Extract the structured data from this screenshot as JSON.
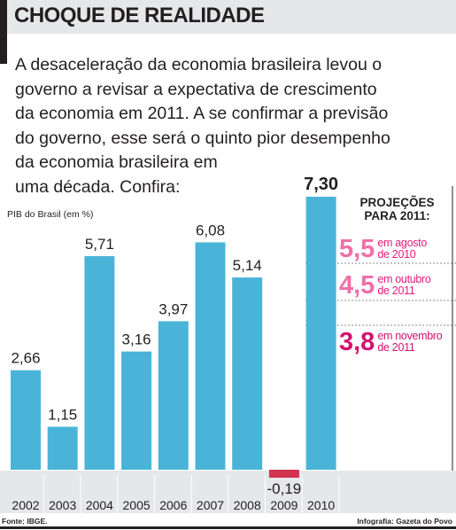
{
  "header": {
    "title": "CHOQUE DE REALIDADE"
  },
  "intro": {
    "lines": [
      "A desaceleração da economia brasileira levou o",
      "governo a revisar a expectativa de crescimento",
      "da economia em 2011. A se confirmar a previsão",
      "do governo, esse será o quinto pior desempenho",
      "da economia brasileira em",
      "uma década. Confira:"
    ]
  },
  "chart_data": {
    "type": "bar",
    "ylabel": "PIB do Brasil (em %)",
    "categories": [
      "2002",
      "2003",
      "2004",
      "2005",
      "2006",
      "2007",
      "2008",
      "2009",
      "2010"
    ],
    "values": [
      2.66,
      1.15,
      5.71,
      3.16,
      3.97,
      6.08,
      5.14,
      -0.19,
      7.3
    ],
    "value_labels": [
      "2,66",
      "1,15",
      "5,71",
      "3,16",
      "3,97",
      "6,08",
      "5,14",
      "-0,19",
      "7,30"
    ],
    "ylim": [
      -0.2,
      7.5
    ],
    "colors": {
      "positive": "#4ab4d8",
      "negative": "#d2334f",
      "axis_band": "#e6e7e8",
      "projection": "#e8197f"
    }
  },
  "projections": {
    "title_line1": "PROJEÇÕES",
    "title_line2": "PARA 2011:",
    "items": [
      {
        "value": "5,5",
        "label_line1": "em agosto",
        "label_line2": "de 2010",
        "emphasis": false
      },
      {
        "value": "4,5",
        "label_line1": "em outubro",
        "label_line2": "de 2011",
        "emphasis": false
      },
      {
        "value": "3,8",
        "label_line1": "em novembro",
        "label_line2": "de 2011",
        "emphasis": true
      }
    ]
  },
  "footer": {
    "source": "Fonte: IBGE.",
    "credit": "Infografia: Gazeta do Povo"
  }
}
